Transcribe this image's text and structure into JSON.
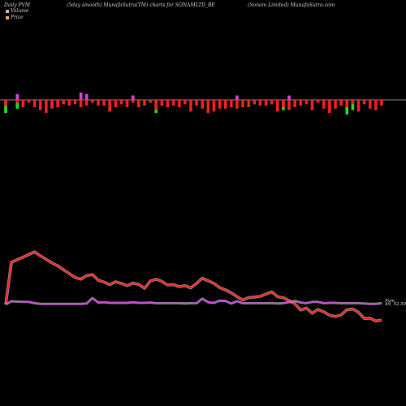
{
  "header": {
    "left": "Daily PVM",
    "middle": "(5day smooth) MunafaSutra(TM) charts for SONAMLTD_BE",
    "right": "(Sonam Limited) MunafaSutra.com"
  },
  "legend": [
    {
      "label": "Volume",
      "color": "#d9a0c8"
    },
    {
      "label": "Price",
      "color": "#e8a468"
    }
  ],
  "colors": {
    "price_line": "#ff2020",
    "pvm_line": "#cc44dd",
    "vol_up": "#22dd22",
    "vol_down": "#ee2020",
    "vol_mixed": "#cc44dd",
    "baseline": "#bbbbbb"
  },
  "chart_data": {
    "type": "line",
    "series": [
      {
        "name": "Price",
        "values": [
          100,
          230,
          238,
          246,
          254,
          262,
          250,
          239,
          228,
          219,
          207,
          195,
          183,
          178,
          189,
          192,
          175,
          169,
          161,
          170,
          165,
          158,
          166,
          162,
          150,
          172,
          178,
          171,
          160,
          161,
          155,
          158,
          151,
          165,
          181,
          173,
          165,
          152,
          145,
          136,
          124,
          114,
          121,
          123,
          125,
          132,
          139,
          124,
          121,
          112,
          102,
          83,
          89,
          73,
          85,
          77,
          67,
          63,
          68,
          84,
          86,
          76,
          57,
          58,
          49,
          52
        ]
      },
      {
        "name": "PVM",
        "values": [
          100,
          110,
          109,
          108,
          108,
          104,
          102,
          102,
          102,
          102,
          102,
          102,
          102,
          102,
          103,
          120,
          106,
          107,
          105,
          105,
          105,
          105,
          107,
          105,
          105,
          106,
          104,
          104,
          104,
          104,
          104,
          103,
          104,
          104,
          118,
          107,
          105,
          112,
          111,
          103,
          110,
          104,
          104,
          104,
          104,
          104,
          104,
          103,
          104,
          107,
          111,
          106,
          104,
          108,
          108,
          104,
          105,
          105,
          104,
          104,
          104,
          104,
          103,
          102,
          102,
          104
        ]
      }
    ],
    "volume": {
      "up": [
        9,
        0,
        6,
        0,
        0,
        0,
        0,
        0,
        5,
        0,
        0,
        0,
        0,
        0,
        0,
        0,
        0,
        0,
        8,
        0,
        0,
        0,
        0,
        0,
        0,
        0,
        9,
        0,
        0,
        0,
        0,
        0,
        0,
        0,
        0,
        0,
        0,
        0,
        0,
        0,
        0,
        0,
        0,
        0,
        0,
        0,
        0,
        0,
        7,
        0,
        0,
        0,
        0,
        0,
        0,
        0,
        0,
        0,
        0,
        10,
        7,
        0,
        0,
        0,
        0,
        0
      ],
      "down": [
        4,
        0,
        2,
        5,
        2,
        5,
        7,
        9,
        6,
        5,
        3,
        4,
        3,
        5,
        4,
        2,
        4,
        4,
        8,
        5,
        3,
        5,
        2,
        5,
        4,
        2,
        7,
        4,
        5,
        4,
        5,
        3,
        8,
        4,
        6,
        9,
        8,
        6,
        6,
        5,
        6,
        5,
        5,
        3,
        4,
        4,
        3,
        8,
        5,
        7,
        5,
        4,
        3,
        7,
        2,
        6,
        9,
        6,
        4,
        5,
        3,
        8,
        3,
        6,
        7,
        4
      ],
      "mixed_up": [
        0,
        0,
        4,
        0,
        0,
        0,
        0,
        0,
        0,
        0,
        0,
        0,
        0,
        5,
        4,
        0,
        0,
        0,
        0,
        0,
        0,
        0,
        3,
        0,
        0,
        0,
        0,
        0,
        0,
        0,
        0,
        0,
        0,
        0,
        0,
        0,
        0,
        0,
        0,
        0,
        3,
        0,
        0,
        0,
        0,
        0,
        0,
        0,
        0,
        3,
        0,
        0,
        0,
        0,
        0,
        0,
        0,
        0,
        0,
        0,
        0,
        0,
        0,
        0,
        0,
        0
      ]
    },
    "end_label": "Pvm",
    "end_label_values": [
      "49",
      "52.59"
    ],
    "grid": false
  }
}
